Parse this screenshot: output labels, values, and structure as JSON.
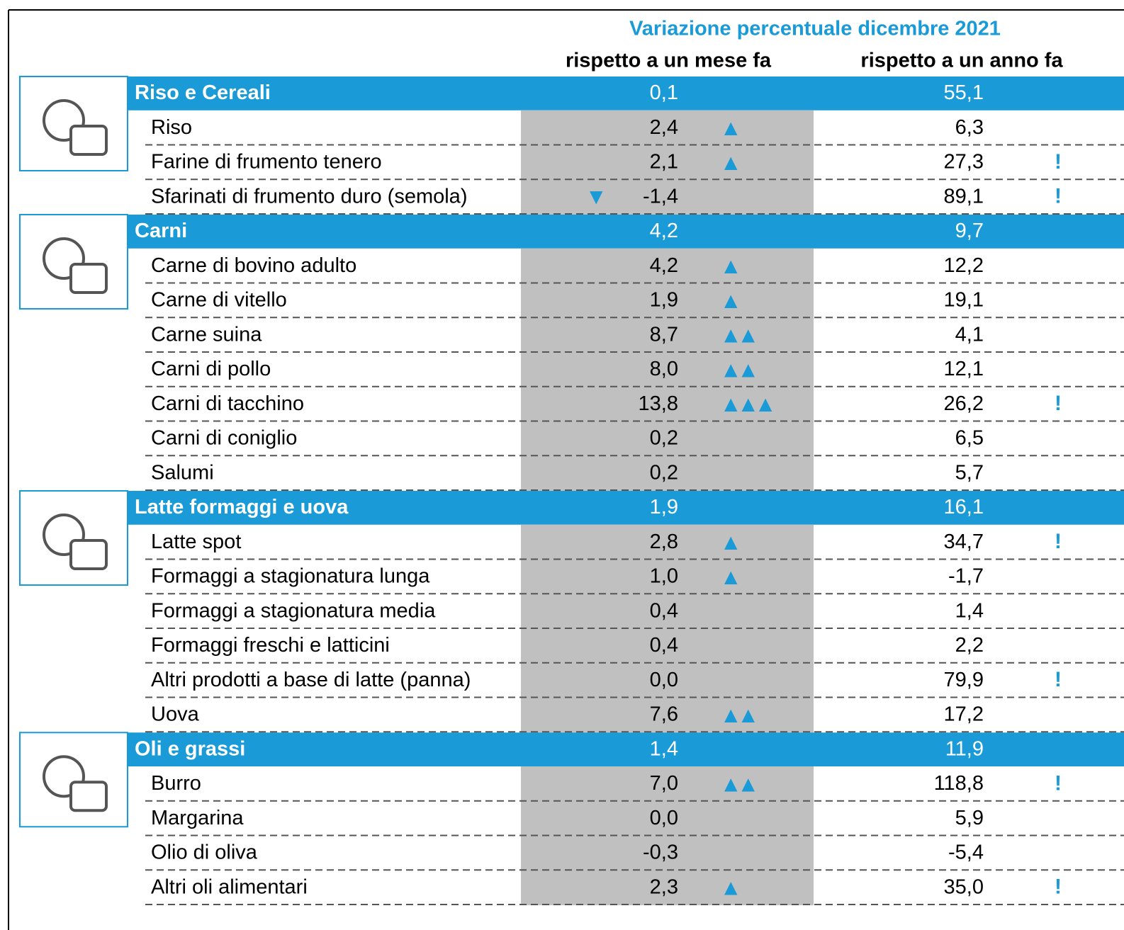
{
  "header": {
    "title": "Variazione percentuale dicembre 2021",
    "col_month": "rispetto a un mese fa",
    "col_year": "rispetto a un anno fa"
  },
  "groups": [
    {
      "name": "Riso e Cereali",
      "month": "0,1",
      "year": "55,1",
      "items": [
        {
          "name": "Riso",
          "month": "2,4",
          "trend": "▲",
          "year": "6,3"
        },
        {
          "name": "Farine di frumento tenero",
          "month": "2,1",
          "trend": "▲",
          "year": "27,3",
          "alert": "!"
        },
        {
          "name": "Sfarinati di frumento duro (semola)",
          "trend_down": "▼",
          "month": "-1,4",
          "year": "89,1",
          "alert": "!"
        }
      ]
    },
    {
      "name": "Carni",
      "month": "4,2",
      "year": "9,7",
      "items": [
        {
          "name": "Carne di bovino adulto",
          "month": "4,2",
          "trend": "▲",
          "year": "12,2"
        },
        {
          "name": "Carne di vitello",
          "month": "1,9",
          "trend": "▲",
          "year": "19,1"
        },
        {
          "name": "Carne suina",
          "month": "8,7",
          "trend": "▲▲",
          "year": "4,1"
        },
        {
          "name": "Carni di pollo",
          "month": "8,0",
          "trend": "▲▲",
          "year": "12,1"
        },
        {
          "name": "Carni di tacchino",
          "month": "13,8",
          "trend": "▲▲▲",
          "year": "26,2",
          "alert": "!"
        },
        {
          "name": "Carni di coniglio",
          "month": "0,2",
          "year": "6,5"
        },
        {
          "name": "Salumi",
          "month": "0,2",
          "year": "5,7"
        }
      ]
    },
    {
      "name": "Latte formaggi e uova",
      "month": "1,9",
      "year": "16,1",
      "items": [
        {
          "name": "Latte spot",
          "month": "2,8",
          "trend": "▲",
          "year": "34,7",
          "alert": "!"
        },
        {
          "name": "Formaggi a stagionatura lunga",
          "month": "1,0",
          "trend": "▲",
          "year": "-1,7"
        },
        {
          "name": "Formaggi a stagionatura media",
          "month": "0,4",
          "year": "1,4"
        },
        {
          "name": "Formaggi freschi e latticini",
          "month": "0,4",
          "year": "2,2"
        },
        {
          "name": "Altri prodotti a base di latte (panna)",
          "month": "0,0",
          "year": "79,9",
          "alert": "!"
        },
        {
          "name": "Uova",
          "month": "7,6",
          "trend": "▲▲",
          "year": "17,2"
        }
      ]
    },
    {
      "name": "Oli e grassi",
      "month": "1,4",
      "year": "11,9",
      "items": [
        {
          "name": "Burro",
          "month": "7,0",
          "trend": "▲▲",
          "year": "118,8",
          "alert": "!"
        },
        {
          "name": "Margarina",
          "month": "0,0",
          "year": "5,9"
        },
        {
          "name": "Olio di oliva",
          "month": "-0,3",
          "year": "-5,4"
        },
        {
          "name": "Altri oli alimentari",
          "month": "2,3",
          "trend": "▲",
          "year": "35,0",
          "alert": "!"
        }
      ]
    }
  ]
}
